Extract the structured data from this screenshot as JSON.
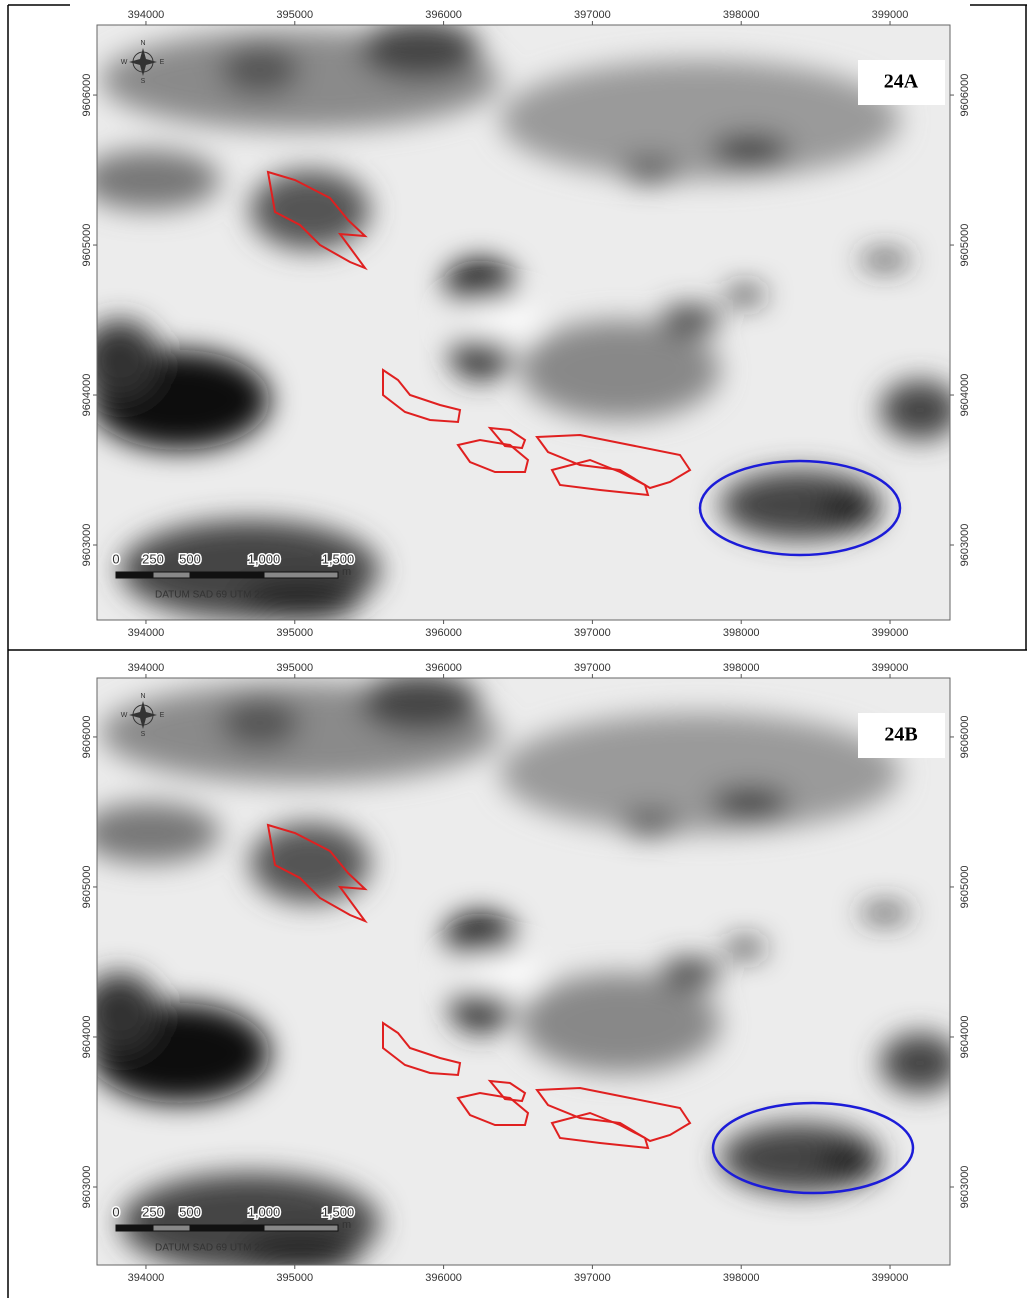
{
  "panels": [
    {
      "label": "24A",
      "map": {
        "xlim": [
          393671,
          399403
        ],
        "ylim": [
          9602500,
          9606467
        ],
        "xticks": [
          394000,
          395000,
          396000,
          397000,
          398000,
          399000
        ],
        "yticks": [
          9603000,
          9604000,
          9605000,
          9606000
        ]
      },
      "compass": {
        "north": "N",
        "south": "S",
        "east": "E",
        "west": "W"
      },
      "scale_bar": {
        "labels": [
          "0",
          "250",
          "500",
          "1,000",
          "1,500"
        ],
        "unit": "m",
        "datum": "DATUM SAD 69 UTM 22"
      }
    },
    {
      "label": "24B",
      "map": {
        "xlim": [
          393671,
          399403
        ],
        "ylim": [
          9602480,
          9606393
        ],
        "xticks": [
          394000,
          395000,
          396000,
          397000,
          398000,
          399000
        ],
        "yticks": [
          9603000,
          9604000,
          9605000,
          9606000
        ]
      },
      "compass": {
        "north": "N",
        "south": "S",
        "east": "E",
        "west": "W"
      },
      "scale_bar": {
        "labels": [
          "0",
          "250",
          "500",
          "1,000",
          "1,500"
        ],
        "unit": "m",
        "datum": "DATUM SAD 69 UTM 22"
      }
    }
  ]
}
